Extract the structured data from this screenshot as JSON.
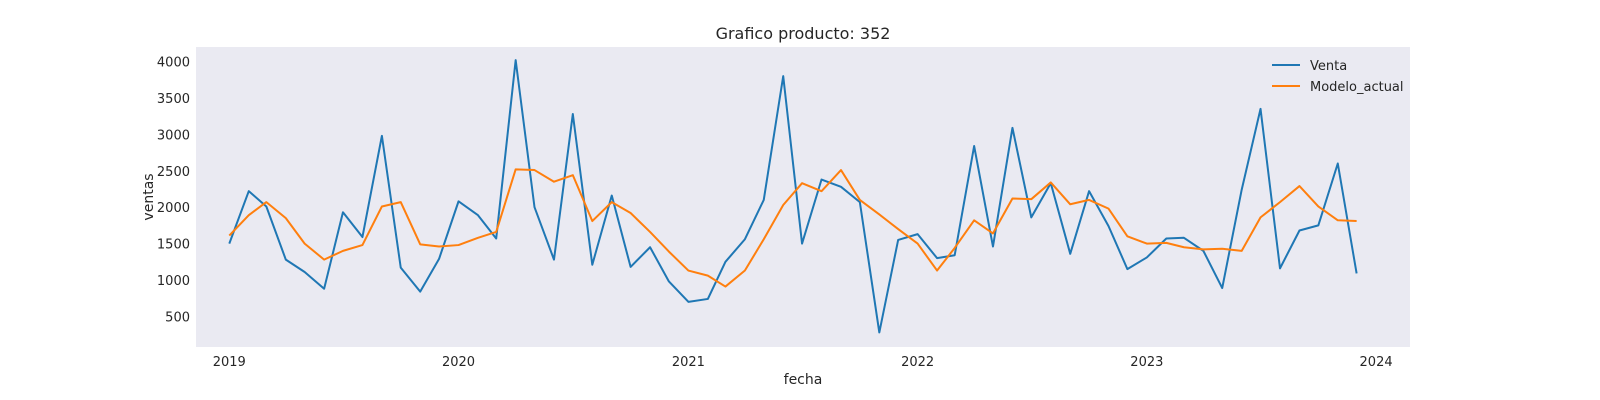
{
  "chart_data": {
    "type": "line",
    "title": "Grafico producto: 352",
    "xlabel": "fecha",
    "ylabel": "ventas",
    "x_tick_labels": [
      "2019",
      "2020",
      "2021",
      "2022",
      "2023",
      "2024"
    ],
    "y_ticks": [
      500,
      1000,
      1500,
      2000,
      2500,
      3000,
      3500,
      4000
    ],
    "xlim": [
      "2018-11-09",
      "2024-02-24"
    ],
    "ylim": [
      80,
      4200
    ],
    "grid": false,
    "legend_position": "top-right",
    "x": [
      "2019-01-01",
      "2019-02-01",
      "2019-03-01",
      "2019-04-01",
      "2019-05-01",
      "2019-06-01",
      "2019-07-01",
      "2019-08-01",
      "2019-09-01",
      "2019-10-01",
      "2019-11-01",
      "2019-12-01",
      "2020-01-01",
      "2020-02-01",
      "2020-03-01",
      "2020-04-01",
      "2020-05-01",
      "2020-06-01",
      "2020-07-01",
      "2020-08-01",
      "2020-09-01",
      "2020-10-01",
      "2020-11-01",
      "2020-12-01",
      "2021-01-01",
      "2021-02-01",
      "2021-03-01",
      "2021-04-01",
      "2021-05-01",
      "2021-06-01",
      "2021-07-01",
      "2021-08-01",
      "2021-09-01",
      "2021-10-01",
      "2021-11-01",
      "2021-12-01",
      "2022-01-01",
      "2022-02-01",
      "2022-03-01",
      "2022-04-01",
      "2022-05-01",
      "2022-06-01",
      "2022-07-01",
      "2022-08-01",
      "2022-09-01",
      "2022-10-01",
      "2022-11-01",
      "2022-12-01",
      "2023-01-01",
      "2023-02-01",
      "2023-03-01",
      "2023-04-01",
      "2023-05-01",
      "2023-06-01",
      "2023-07-01",
      "2023-08-01",
      "2023-09-01",
      "2023-10-01",
      "2023-11-01",
      "2023-12-01"
    ],
    "series": [
      {
        "name": "Venta",
        "color": "#1f77b4",
        "values": [
          1500,
          2220,
          2010,
          1280,
          1110,
          880,
          1930,
          1590,
          2980,
          1170,
          840,
          1290,
          2080,
          1890,
          1570,
          4020,
          2000,
          1280,
          3280,
          1210,
          2160,
          1180,
          1450,
          980,
          700,
          740,
          1250,
          1560,
          2100,
          3800,
          1500,
          2380,
          2280,
          2070,
          280,
          1550,
          1630,
          1300,
          1340,
          2840,
          1460,
          3090,
          1860,
          2330,
          1360,
          2220,
          1740,
          1150,
          1310,
          1570,
          1580,
          1400,
          890,
          2240,
          3350,
          1160,
          1680,
          1750,
          2600,
          1090
        ]
      },
      {
        "name": "Modelo_actual",
        "color": "#ff7f0e",
        "values": [
          1610,
          1890,
          2070,
          1850,
          1500,
          1280,
          1400,
          1480,
          2010,
          2070,
          1490,
          1460,
          1480,
          1580,
          1660,
          2520,
          2510,
          2350,
          2440,
          1810,
          2070,
          1920,
          1660,
          1390,
          1130,
          1060,
          910,
          1130,
          1560,
          2030,
          2330,
          2220,
          2510,
          2100,
          1900,
          1700,
          1500,
          1130,
          1440,
          1820,
          1640,
          2120,
          2110,
          2340,
          2040,
          2100,
          1980,
          1600,
          1500,
          1510,
          1450,
          1420,
          1430,
          1400,
          1860,
          2070,
          2290,
          2010,
          1820,
          1810
        ]
      }
    ]
  }
}
